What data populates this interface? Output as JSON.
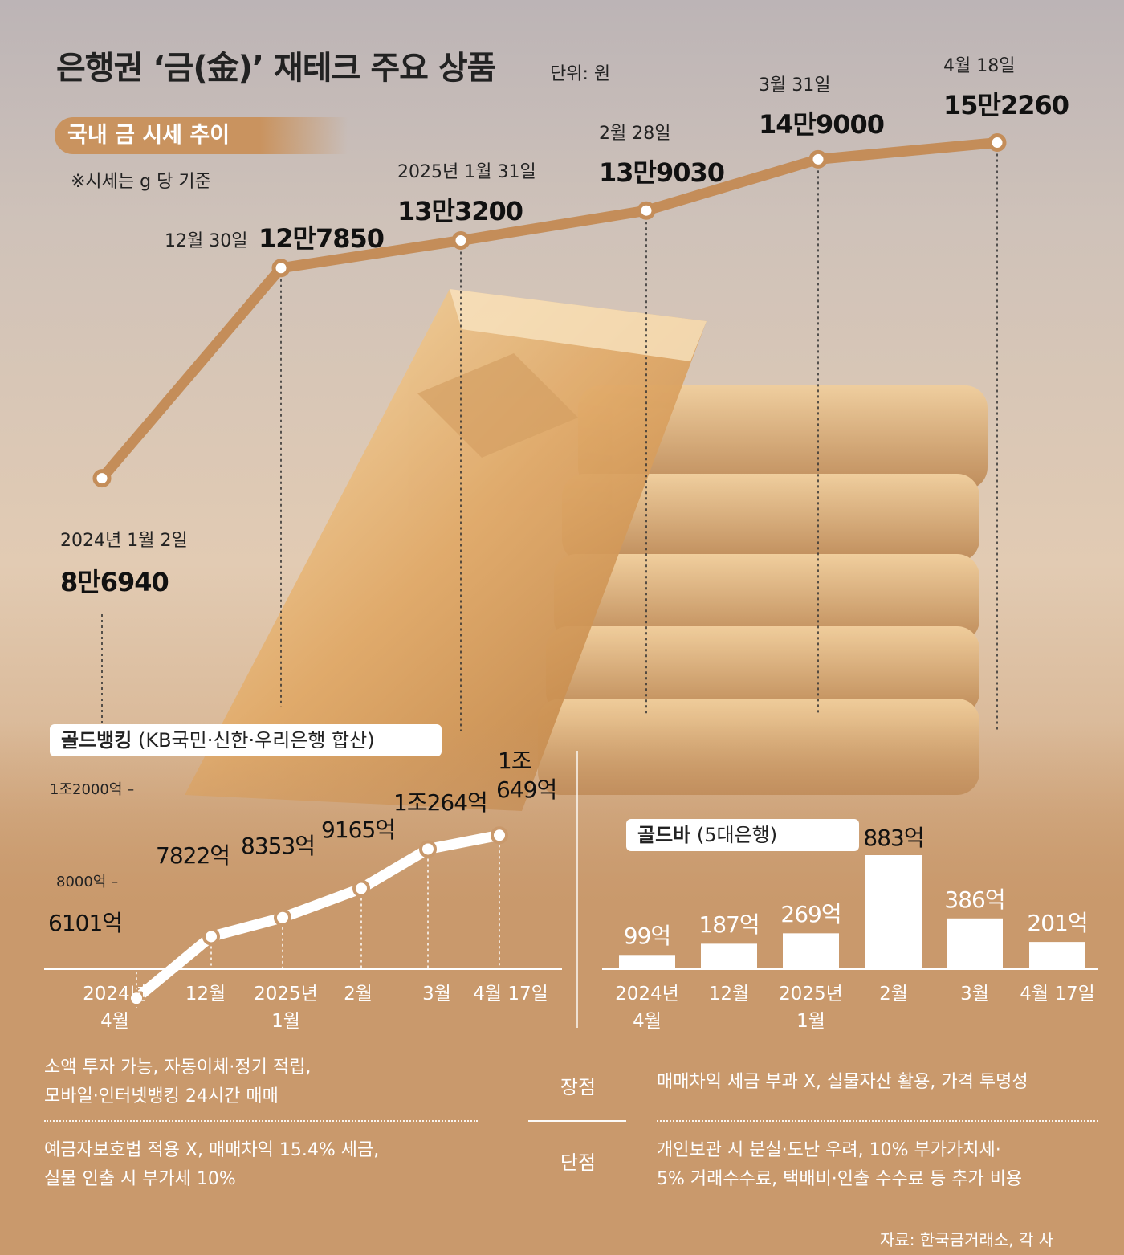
{
  "title": "은행권 ‘금(金)’ 재테크 주요 상품",
  "unit": "단위: 원",
  "charts": {
    "price": {
      "section_label": "국내 금 시세 추이",
      "note": "※시세는 g 당 기준"
    },
    "banking": {
      "title": "골드뱅킹",
      "subtitle": "(KB국민·신한·우리은행 합산)",
      "axis_ticks": [
        "1조2000억 –",
        "8000억 –"
      ]
    },
    "goldbar": {
      "title": "골드바",
      "subtitle": "(5대은행)"
    }
  },
  "chart_data": [
    {
      "type": "line",
      "categories": [
        "2024년 1월 2일",
        "12월 30일",
        "2025년 1월 31일",
        "2월 28일",
        "3월 31일",
        "4월 18일"
      ],
      "values": [
        86940,
        127850,
        133200,
        139030,
        149000,
        152260
      ],
      "value_labels": [
        "8만6940",
        "12만7850",
        "13만3200",
        "13만9030",
        "14만9000",
        "15만2260"
      ],
      "color": "#c48d59"
    },
    {
      "type": "line",
      "categories": [
        "2024년 4월",
        "12월",
        "2025년 1월",
        "2월",
        "3월",
        "4월 17일"
      ],
      "x_labels": [
        [
          "2024년",
          "4월"
        ],
        [
          "12월"
        ],
        [
          "2025년",
          "1월"
        ],
        [
          "2월"
        ],
        [
          "3월"
        ],
        [
          "4월 17일"
        ]
      ],
      "values": [
        6101,
        7822,
        8353,
        9165,
        10264,
        10649
      ],
      "value_labels": [
        "6101억",
        "7822억",
        "8353억",
        "9165억",
        "1조264억",
        [
          "1조",
          "649억"
        ]
      ],
      "ylim": [
        4000,
        12000
      ],
      "color": "#ffffff"
    },
    {
      "type": "bar",
      "categories": [
        "2024년 4월",
        "12월",
        "2025년 1월",
        "2월",
        "3월",
        "4월 17일"
      ],
      "x_labels": [
        [
          "2024년",
          "4월"
        ],
        [
          "12월"
        ],
        [
          "2025년",
          "1월"
        ],
        [
          "2월"
        ],
        [
          "3월"
        ],
        [
          "4월 17일"
        ]
      ],
      "values": [
        99,
        187,
        269,
        883,
        386,
        201
      ],
      "value_labels": [
        "99억",
        "187억",
        "269억",
        "883억",
        "386억",
        "201억"
      ],
      "ylim": [
        0,
        883
      ],
      "color": "#ffffff"
    }
  ],
  "comparison": {
    "pros_label": "장점",
    "cons_label": "단점",
    "banking_pros": [
      "소액 투자 가능, 자동이체·정기 적립,",
      "모바일·인터넷뱅킹 24시간 매매"
    ],
    "banking_cons": [
      "예금자보호법 적용 X, 매매차익 15.4% 세금,",
      "실물 인출 시 부가세 10%"
    ],
    "goldbar_pros": [
      "매매차익 세금 부과 X, 실물자산 활용, 가격 투명성"
    ],
    "goldbar_cons": [
      "개인보관 시 분실·도난 우려, 10% 부가가치세·",
      "5% 거래수수료, 택배비·인출 수수료 등 추가 비용"
    ]
  },
  "source": "자료: 한국금거래소, 각 사"
}
